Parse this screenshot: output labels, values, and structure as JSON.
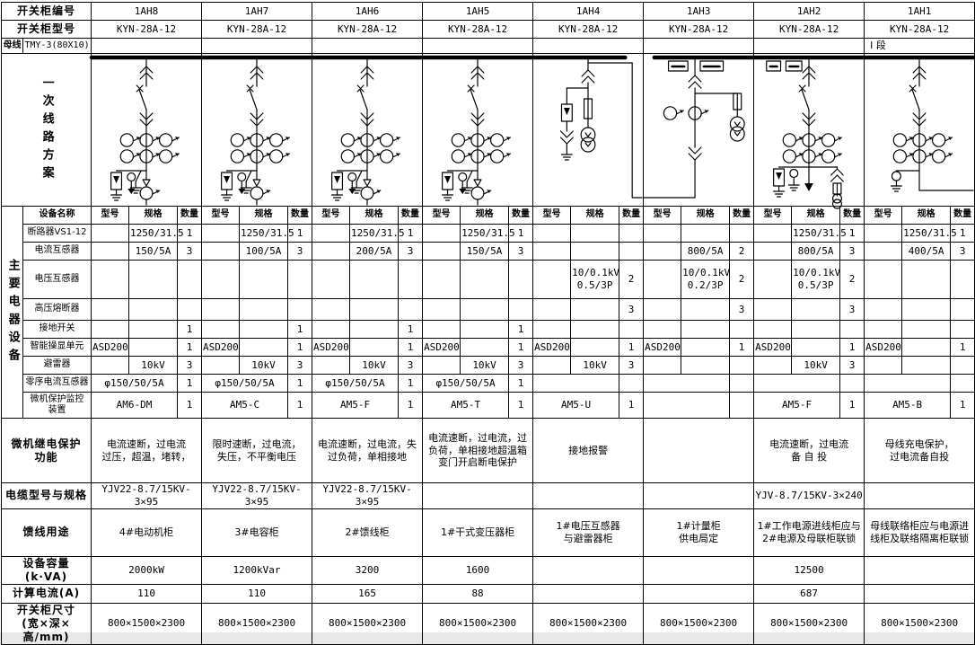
{
  "top": {
    "cabinet_no_label": "开关柜编号",
    "cabinet_model_label": "开关柜型号",
    "bus_label": "母线",
    "bus_spec": "TMY-3(80X10)",
    "section_label": "I 段",
    "scheme_label": "一次线路方案",
    "cabinets": [
      {
        "id": "1AH8",
        "model": "KYN-28A-12",
        "diagram": "feeder"
      },
      {
        "id": "1AH7",
        "model": "KYN-28A-12",
        "diagram": "feeder"
      },
      {
        "id": "1AH6",
        "model": "KYN-28A-12",
        "diagram": "feeder"
      },
      {
        "id": "1AH5",
        "model": "KYN-28A-12",
        "diagram": "feeder"
      },
      {
        "id": "1AH4",
        "model": "KYN-28A-12",
        "diagram": "pt"
      },
      {
        "id": "1AH3",
        "model": "KYN-28A-12",
        "diagram": "metering"
      },
      {
        "id": "1AH2",
        "model": "KYN-28A-12",
        "diagram": "incoming"
      },
      {
        "id": "1AH1",
        "model": "KYN-28A-12",
        "diagram": "bustie"
      }
    ]
  },
  "equipment": {
    "side_label": "主要电器设备",
    "name_header": "设备名称",
    "sub_headers": [
      "型号",
      "规格",
      "数量"
    ],
    "rows": [
      {
        "name": "断路器VS1-12",
        "merged": false,
        "cells": [
          [
            "",
            "1250/31.5",
            "1"
          ],
          [
            "",
            "1250/31.5",
            "1"
          ],
          [
            "",
            "1250/31.5",
            "1"
          ],
          [
            "",
            "1250/31.5",
            "1"
          ],
          [
            "",
            "",
            ""
          ],
          [
            "",
            "",
            ""
          ],
          [
            "",
            "1250/31.5",
            "1"
          ],
          [
            "",
            "1250/31.5",
            "1"
          ]
        ]
      },
      {
        "name": "电流互感器",
        "merged": false,
        "cells": [
          [
            "",
            "150/5A",
            "3"
          ],
          [
            "",
            "100/5A",
            "3"
          ],
          [
            "",
            "200/5A",
            "3"
          ],
          [
            "",
            "150/5A",
            "3"
          ],
          [
            "",
            "",
            ""
          ],
          [
            "",
            "800/5A",
            "2"
          ],
          [
            "",
            "800/5A",
            "3"
          ],
          [
            "",
            "400/5A",
            "3"
          ]
        ]
      },
      {
        "name": "电压互感器",
        "merged": false,
        "cells": [
          [
            "",
            "",
            ""
          ],
          [
            "",
            "",
            ""
          ],
          [
            "",
            "",
            ""
          ],
          [
            "",
            "",
            ""
          ],
          [
            "",
            "10/0.1kV\n0.5/3P",
            "2"
          ],
          [
            "",
            "10/0.1kV\n0.2/3P",
            "2"
          ],
          [
            "",
            "10/0.1kV\n0.5/3P",
            "2"
          ],
          [
            "",
            "",
            ""
          ]
        ]
      },
      {
        "name": "高压熔断器",
        "merged": false,
        "cells": [
          [
            "",
            "",
            ""
          ],
          [
            "",
            "",
            ""
          ],
          [
            "",
            "",
            ""
          ],
          [
            "",
            "",
            ""
          ],
          [
            "",
            "",
            "3"
          ],
          [
            "",
            "",
            "3"
          ],
          [
            "",
            "",
            "3"
          ],
          [
            "",
            "",
            ""
          ]
        ]
      },
      {
        "name": "接地开关",
        "merged": false,
        "cells": [
          [
            "",
            "",
            "1"
          ],
          [
            "",
            "",
            "1"
          ],
          [
            "",
            "",
            "1"
          ],
          [
            "",
            "",
            "1"
          ],
          [
            "",
            "",
            ""
          ],
          [
            "",
            "",
            ""
          ],
          [
            "",
            "",
            ""
          ],
          [
            "",
            "",
            ""
          ]
        ]
      },
      {
        "name": "智能操显单元",
        "merged": false,
        "cells": [
          [
            "ASD200",
            "",
            "1"
          ],
          [
            "ASD200",
            "",
            "1"
          ],
          [
            "ASD200",
            "",
            "1"
          ],
          [
            "ASD200",
            "",
            "1"
          ],
          [
            "ASD200",
            "",
            "1"
          ],
          [
            "ASD200",
            "",
            "1"
          ],
          [
            "ASD200",
            "",
            "1"
          ],
          [
            "ASD200",
            "",
            "1"
          ]
        ]
      },
      {
        "name": "避雷器",
        "merged": false,
        "cells": [
          [
            "",
            "10kV",
            "3"
          ],
          [
            "",
            "10kV",
            "3"
          ],
          [
            "",
            "10kV",
            "3"
          ],
          [
            "",
            "10kV",
            "3"
          ],
          [
            "",
            "10kV",
            "3"
          ],
          [
            "",
            "",
            ""
          ],
          [
            "",
            "10kV",
            "3"
          ],
          [
            "",
            "",
            ""
          ]
        ]
      },
      {
        "name": "零序电流互感器",
        "merged": true,
        "cells": [
          [
            "φ150/50/5A",
            "1"
          ],
          [
            "φ150/50/5A",
            "1"
          ],
          [
            "φ150/50/5A",
            "1"
          ],
          [
            "φ150/50/5A",
            "1"
          ],
          [
            "",
            ""
          ],
          [
            "",
            ""
          ],
          [
            "",
            ""
          ],
          [
            "",
            ""
          ]
        ]
      },
      {
        "name": "微机保护监控\n装置",
        "merged": true,
        "cells": [
          [
            "AM6-DM",
            "1"
          ],
          [
            "AM5-C",
            "1"
          ],
          [
            "AM5-F",
            "1"
          ],
          [
            "AM5-T",
            "1"
          ],
          [
            "AM5-U",
            "1"
          ],
          [
            "",
            ""
          ],
          [
            "AM5-F",
            "1"
          ],
          [
            "AM5-B",
            "1"
          ]
        ]
      }
    ]
  },
  "protection": {
    "label": "微机继电保护\n功能",
    "cells": [
      "电流速断，过电流\n过压，超温，堵转，",
      "限时速断，过电流，\n失压，不平衡电压",
      "电流速断，过电流，失\n过负荷，单相接地",
      "电流速断，过电流，过\n负荷，单相接地超温箱\n变门开启断电保护",
      "接地报警",
      "",
      "电流速断，过电流\n备 自 投",
      "母线充电保护，\n过电流备自投"
    ]
  },
  "cable": {
    "label": "电缆型号与规格",
    "cells": [
      "YJV22-8.7/15KV-3×95",
      "YJV22-8.7/15KV-3×95",
      "YJV22-8.7/15KV-3×95",
      "",
      "",
      "",
      "YJV-8.7/15KV-3×240",
      ""
    ]
  },
  "purpose": {
    "label": "馈线用途",
    "cells": [
      "4#电动机柜",
      "3#电容柜",
      "2#馈线柜",
      "1#干式变压器柜",
      "1#电压互感器\n与避雷器柜",
      "1#计量柜\n供电局定",
      "1#工作电源进线柜应与\n2#电源及母联柜联锁",
      "母线联络柜应与电源进\n线柜及联络隔离柜联锁"
    ]
  },
  "capacity": {
    "label": "设备容量(k·VA)",
    "cells": [
      "2000kW",
      "1200kVar",
      "3200",
      "1600",
      "",
      "",
      "12500",
      ""
    ]
  },
  "current": {
    "label": "计算电流(A)",
    "cells": [
      "110",
      "110",
      "165",
      "88",
      "",
      "",
      "687",
      ""
    ]
  },
  "size": {
    "label": "开关柜尺寸\n(宽×深×高/mm)",
    "cells": [
      "800×1500×2300",
      "800×1500×2300",
      "800×1500×2300",
      "800×1500×2300",
      "800×1500×2300",
      "800×1500×2300",
      "800×1500×2300",
      "800×1500×2300"
    ]
  }
}
